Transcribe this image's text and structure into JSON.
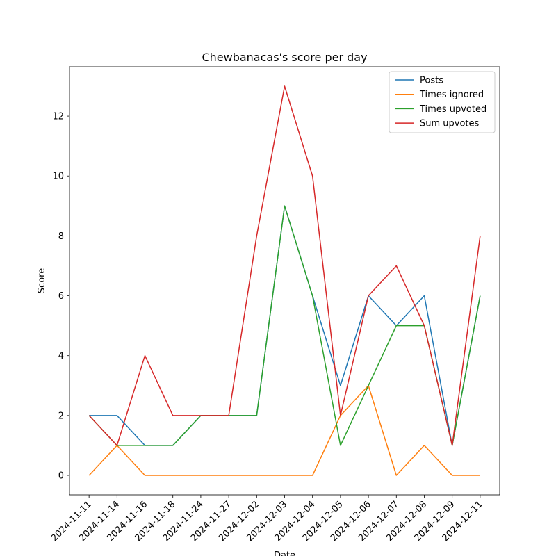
{
  "chart_data": {
    "type": "line",
    "title": "Chewbanacas's score per day",
    "x_label": "Date",
    "y_label": "Score",
    "categories": [
      "2024-11-11",
      "2024-11-14",
      "2024-11-16",
      "2024-11-18",
      "2024-11-24",
      "2024-11-27",
      "2024-12-02",
      "2024-12-03",
      "2024-12-04",
      "2024-12-05",
      "2024-12-06",
      "2024-12-07",
      "2024-12-08",
      "2024-12-09",
      "2024-12-11"
    ],
    "series": [
      {
        "name": "Posts",
        "color": "#1f77b4",
        "values": [
          2,
          2,
          1,
          1,
          2,
          2,
          2,
          9,
          6,
          3,
          6,
          5,
          6,
          1,
          6
        ]
      },
      {
        "name": "Times ignored",
        "color": "#ff7f0e",
        "values": [
          0,
          1,
          0,
          0,
          0,
          0,
          0,
          0,
          0,
          2,
          3,
          0,
          1,
          0,
          0
        ]
      },
      {
        "name": "Times upvoted",
        "color": "#2ca02c",
        "values": [
          2,
          1,
          1,
          1,
          2,
          2,
          2,
          9,
          6,
          1,
          3,
          5,
          5,
          1,
          6
        ]
      },
      {
        "name": "Sum upvotes",
        "color": "#d62728",
        "values": [
          2,
          1,
          4,
          2,
          2,
          2,
          8,
          13,
          10,
          2,
          6,
          7,
          5,
          1,
          8
        ]
      }
    ],
    "xlim": [
      -0.7,
      14.7
    ],
    "ylim": [
      -0.65,
      13.65
    ],
    "yticks": [
      0,
      2,
      4,
      6,
      8,
      10,
      12
    ],
    "legend": "upper right",
    "grid": false
  }
}
